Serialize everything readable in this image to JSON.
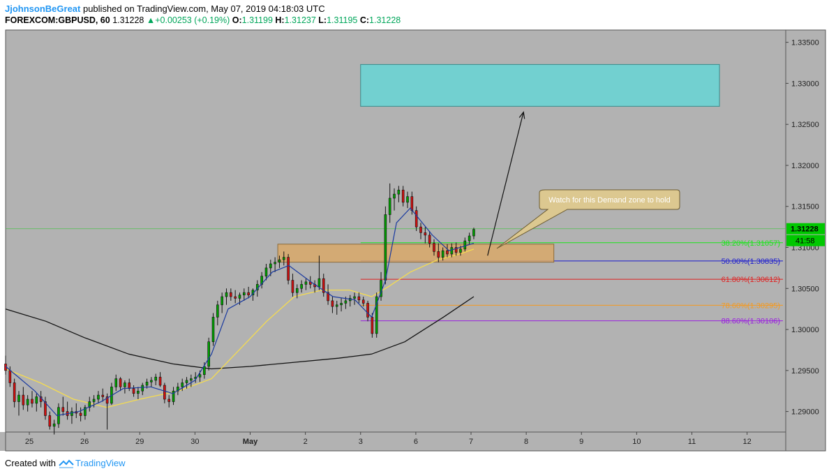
{
  "header": {
    "author": "JjohnsonBeGreat",
    "published_text": " published on TradingView.com, May 07, 2019 04:18:03 UTC",
    "symbol": "FOREXCOM:GBPUSD, 60",
    "last": "1.31228",
    "change": "+0.00253 (+0.19%)",
    "o_label": "O:",
    "o": "1.31199",
    "h_label": "H:",
    "h": "1.31237",
    "l_label": "L:",
    "l": "1.31195",
    "c_label": "C:",
    "c": "1.31228"
  },
  "footer": {
    "created_with": "Created with",
    "brand": "TradingView"
  },
  "colors": {
    "plot_bg": "#b2b2b2",
    "candle_up": "#00a000",
    "candle_down": "#d01010",
    "ema_fast": "#1a3aa0",
    "ema_mid": "#f5dc50",
    "ema_slow": "#111111",
    "target_zone": "#72d0d0",
    "demand_zone": "#d8a868",
    "callout_bg": "#dcc890"
  },
  "chart_data": {
    "type": "candlestick",
    "symbol": "GBPUSD",
    "timeframe": "60",
    "ylim": [
      1.2875,
      1.3365
    ],
    "y_ticks": [
      "1.33500",
      "1.33000",
      "1.32500",
      "1.32000",
      "1.31500",
      "1.31000",
      "1.30500",
      "1.30000",
      "1.29500",
      "1.29000"
    ],
    "x_ticks": [
      "25",
      "26",
      "29",
      "30",
      "May",
      "2",
      "3",
      "6",
      "7",
      "8",
      "9",
      "10",
      "11",
      "12"
    ],
    "x_tick_days": [
      0,
      1,
      2,
      3,
      4,
      5,
      6,
      7,
      8,
      9,
      10,
      11,
      12,
      13
    ],
    "x_range_days": [
      -0.43,
      13.7
    ],
    "price_label": "1.31228",
    "countdown_label": "41:58",
    "fib_levels": [
      {
        "label": "38.20%(1.31057)",
        "price": 1.31057,
        "color": "#19e619"
      },
      {
        "label": "50.00%(1.30835)",
        "price": 1.30835,
        "color": "#1a1ad0"
      },
      {
        "label": "61.80%(1.30612)",
        "price": 1.30612,
        "color": "#e02020"
      },
      {
        "label": "78.60%(1.30295)",
        "price": 1.30295,
        "color": "#f59a20"
      },
      {
        "label": "88.60%(1.30106)",
        "price": 1.30106,
        "color": "#9a20e0"
      }
    ],
    "annotation": "Watch for this Demand zone to hold",
    "zones": [
      {
        "name": "target",
        "x": [
          6.0,
          12.5
        ],
        "y": [
          1.3272,
          1.3323
        ]
      },
      {
        "name": "demand",
        "x": [
          4.5,
          9.5
        ],
        "y": [
          1.3082,
          1.3104
        ]
      }
    ],
    "projection_arrow": {
      "from": [
        8.3,
        1.309
      ],
      "to": [
        8.95,
        1.3265
      ]
    },
    "candles": [
      [
        -0.43,
        1.2958,
        1.2968,
        1.2945,
        1.295
      ],
      [
        -0.35,
        1.295,
        1.2955,
        1.293,
        1.2935
      ],
      [
        -0.27,
        1.2935,
        1.294,
        1.2905,
        1.2912
      ],
      [
        -0.19,
        1.2912,
        1.2925,
        1.2895,
        1.292
      ],
      [
        -0.11,
        1.292,
        1.293,
        1.2902,
        1.2908
      ],
      [
        -0.03,
        1.2908,
        1.292,
        1.29,
        1.2915
      ],
      [
        0.05,
        1.2915,
        1.2925,
        1.2905,
        1.291
      ],
      [
        0.13,
        1.291,
        1.2922,
        1.29,
        1.2918
      ],
      [
        0.21,
        1.2918,
        1.2925,
        1.2905,
        1.2912
      ],
      [
        0.29,
        1.2912,
        1.2918,
        1.289,
        1.2895
      ],
      [
        0.37,
        1.2895,
        1.29,
        1.2878,
        1.2882
      ],
      [
        0.45,
        1.2882,
        1.289,
        1.2872,
        1.2885
      ],
      [
        0.53,
        1.2885,
        1.291,
        1.288,
        1.2905
      ],
      [
        0.61,
        1.2905,
        1.2918,
        1.2895,
        1.29
      ],
      [
        0.69,
        1.29,
        1.2912,
        1.289,
        1.2895
      ],
      [
        0.77,
        1.2895,
        1.2905,
        1.2885,
        1.29
      ],
      [
        0.85,
        1.29,
        1.291,
        1.2892,
        1.2898
      ],
      [
        0.93,
        1.2898,
        1.2905,
        1.2888,
        1.2895
      ],
      [
        1.01,
        1.2895,
        1.2908,
        1.289,
        1.2905
      ],
      [
        1.09,
        1.2905,
        1.2918,
        1.29,
        1.2912
      ],
      [
        1.17,
        1.2912,
        1.292,
        1.2905,
        1.2915
      ],
      [
        1.25,
        1.2915,
        1.2925,
        1.291,
        1.292
      ],
      [
        1.33,
        1.292,
        1.2928,
        1.2912,
        1.2918
      ],
      [
        1.41,
        1.2918,
        1.2922,
        1.2878,
        1.291
      ],
      [
        1.49,
        1.291,
        1.2935,
        1.2908,
        1.293
      ],
      [
        1.57,
        1.293,
        1.2945,
        1.2925,
        1.294
      ],
      [
        1.65,
        1.294,
        1.2942,
        1.2925,
        1.293
      ],
      [
        1.73,
        1.293,
        1.2938,
        1.2922,
        1.2935
      ],
      [
        1.81,
        1.2935,
        1.294,
        1.2925,
        1.2928
      ],
      [
        1.89,
        1.2928,
        1.2932,
        1.2918,
        1.2922
      ],
      [
        1.97,
        1.2922,
        1.293,
        1.2915,
        1.2925
      ],
      [
        2.05,
        1.2925,
        1.2935,
        1.292,
        1.2932
      ],
      [
        2.13,
        1.2932,
        1.294,
        1.2928,
        1.2936
      ],
      [
        2.21,
        1.2936,
        1.2942,
        1.293,
        1.2938
      ],
      [
        2.29,
        1.2938,
        1.2946,
        1.2932,
        1.2942
      ],
      [
        2.37,
        1.2942,
        1.2948,
        1.293,
        1.2932
      ],
      [
        2.45,
        1.2932,
        1.2935,
        1.291,
        1.2915
      ],
      [
        2.53,
        1.2915,
        1.292,
        1.2905,
        1.2912
      ],
      [
        2.61,
        1.2912,
        1.293,
        1.2908,
        1.2925
      ],
      [
        2.69,
        1.2925,
        1.2935,
        1.292,
        1.293
      ],
      [
        2.77,
        1.293,
        1.294,
        1.2925,
        1.2935
      ],
      [
        2.85,
        1.2935,
        1.2942,
        1.2928,
        1.2938
      ],
      [
        2.93,
        1.2938,
        1.2945,
        1.293,
        1.294
      ],
      [
        3.01,
        1.294,
        1.2948,
        1.2935,
        1.2942
      ],
      [
        3.09,
        1.2942,
        1.295,
        1.2936,
        1.2945
      ],
      [
        3.17,
        1.2945,
        1.296,
        1.294,
        1.2955
      ],
      [
        3.25,
        1.2955,
        1.299,
        1.295,
        1.2985
      ],
      [
        3.33,
        1.2985,
        1.302,
        1.298,
        1.3015
      ],
      [
        3.41,
        1.3015,
        1.3035,
        1.3005,
        1.303
      ],
      [
        3.49,
        1.303,
        1.3045,
        1.302,
        1.304
      ],
      [
        3.57,
        1.304,
        1.305,
        1.303,
        1.3045
      ],
      [
        3.65,
        1.3045,
        1.305,
        1.3035,
        1.304
      ],
      [
        3.73,
        1.304,
        1.3048,
        1.3032,
        1.3038
      ],
      [
        3.81,
        1.3038,
        1.3045,
        1.303,
        1.3042
      ],
      [
        3.89,
        1.3042,
        1.305,
        1.3035,
        1.3045
      ],
      [
        3.97,
        1.3045,
        1.3052,
        1.3038,
        1.3042
      ],
      [
        4.05,
        1.3042,
        1.305,
        1.3035,
        1.3048
      ],
      [
        4.13,
        1.3048,
        1.306,
        1.304,
        1.3055
      ],
      [
        4.21,
        1.3055,
        1.307,
        1.305,
        1.3065
      ],
      [
        4.29,
        1.3065,
        1.308,
        1.306,
        1.3075
      ],
      [
        4.37,
        1.3075,
        1.3085,
        1.3065,
        1.308
      ],
      [
        4.45,
        1.308,
        1.3088,
        1.307,
        1.3082
      ],
      [
        4.53,
        1.3082,
        1.309,
        1.3075,
        1.3085
      ],
      [
        4.61,
        1.3085,
        1.3095,
        1.3078,
        1.3088
      ],
      [
        4.69,
        1.3088,
        1.3092,
        1.3055,
        1.306
      ],
      [
        4.77,
        1.306,
        1.3068,
        1.304,
        1.3045
      ],
      [
        4.85,
        1.3045,
        1.3055,
        1.3038,
        1.305
      ],
      [
        4.93,
        1.305,
        1.306,
        1.3045,
        1.3055
      ],
      [
        5.01,
        1.3055,
        1.3062,
        1.3048,
        1.3058
      ],
      [
        5.09,
        1.3058,
        1.3065,
        1.305,
        1.3055
      ],
      [
        5.17,
        1.3055,
        1.306,
        1.3045,
        1.3052
      ],
      [
        5.25,
        1.3052,
        1.309,
        1.3048,
        1.3062
      ],
      [
        5.33,
        1.3062,
        1.3068,
        1.304,
        1.3045
      ],
      [
        5.41,
        1.3045,
        1.3055,
        1.303,
        1.3035
      ],
      [
        5.49,
        1.3035,
        1.304,
        1.302,
        1.3028
      ],
      [
        5.57,
        1.3028,
        1.3035,
        1.3018,
        1.303
      ],
      [
        5.65,
        1.303,
        1.3038,
        1.3022,
        1.3032
      ],
      [
        5.73,
        1.3032,
        1.304,
        1.3025,
        1.3035
      ],
      [
        5.81,
        1.3035,
        1.3042,
        1.3028,
        1.3038
      ],
      [
        5.89,
        1.3038,
        1.3045,
        1.303,
        1.304
      ],
      [
        5.97,
        1.304,
        1.3045,
        1.3032,
        1.3036
      ],
      [
        6.05,
        1.3036,
        1.304,
        1.3028,
        1.3032
      ],
      [
        6.13,
        1.3032,
        1.3035,
        1.301,
        1.3015
      ],
      [
        6.21,
        1.3015,
        1.302,
        1.299,
        1.2995
      ],
      [
        6.29,
        1.2995,
        1.3045,
        1.299,
        1.304
      ],
      [
        6.37,
        1.304,
        1.307,
        1.3035,
        1.306
      ],
      [
        6.45,
        1.306,
        1.315,
        1.3055,
        1.314
      ],
      [
        6.53,
        1.314,
        1.3178,
        1.313,
        1.316
      ],
      [
        6.61,
        1.316,
        1.3172,
        1.3145,
        1.3165
      ],
      [
        6.69,
        1.3165,
        1.3175,
        1.3155,
        1.317
      ],
      [
        6.77,
        1.317,
        1.3175,
        1.315,
        1.3155
      ],
      [
        6.85,
        1.3155,
        1.3168,
        1.3148,
        1.3162
      ],
      [
        6.93,
        1.3162,
        1.3168,
        1.314,
        1.3145
      ],
      [
        7.01,
        1.3145,
        1.315,
        1.312,
        1.3125
      ],
      [
        7.09,
        1.3125,
        1.313,
        1.311,
        1.3118
      ],
      [
        7.17,
        1.3118,
        1.3125,
        1.3105,
        1.3115
      ],
      [
        7.25,
        1.3115,
        1.312,
        1.31,
        1.3105
      ],
      [
        7.33,
        1.3105,
        1.311,
        1.309,
        1.3095
      ],
      [
        7.41,
        1.3095,
        1.3105,
        1.3082,
        1.3088
      ],
      [
        7.49,
        1.3088,
        1.31,
        1.3084,
        1.3096
      ],
      [
        7.57,
        1.3096,
        1.3104,
        1.3088,
        1.3092
      ],
      [
        7.65,
        1.3092,
        1.3105,
        1.3088,
        1.31
      ],
      [
        7.73,
        1.31,
        1.3106,
        1.309,
        1.3094
      ],
      [
        7.81,
        1.3094,
        1.3102,
        1.309,
        1.3098
      ],
      [
        7.89,
        1.3098,
        1.3112,
        1.3095,
        1.3108
      ],
      [
        7.97,
        1.3108,
        1.3118,
        1.3104,
        1.3114
      ],
      [
        8.05,
        1.3114,
        1.3124,
        1.311,
        1.3122
      ]
    ],
    "ema_fast": [
      [
        -0.43,
        1.2955
      ],
      [
        0.1,
        1.2925
      ],
      [
        0.5,
        1.2895
      ],
      [
        0.9,
        1.29
      ],
      [
        1.3,
        1.2912
      ],
      [
        1.7,
        1.2928
      ],
      [
        2.2,
        1.293
      ],
      [
        2.6,
        1.2922
      ],
      [
        3.0,
        1.2938
      ],
      [
        3.3,
        1.297
      ],
      [
        3.6,
        1.3025
      ],
      [
        4.0,
        1.304
      ],
      [
        4.4,
        1.307
      ],
      [
        4.7,
        1.3078
      ],
      [
        5.1,
        1.3058
      ],
      [
        5.5,
        1.304
      ],
      [
        5.9,
        1.3036
      ],
      [
        6.2,
        1.3015
      ],
      [
        6.45,
        1.306
      ],
      [
        6.65,
        1.313
      ],
      [
        6.9,
        1.3148
      ],
      [
        7.3,
        1.3115
      ],
      [
        7.6,
        1.3096
      ],
      [
        8.05,
        1.3105
      ]
    ],
    "ema_mid": [
      [
        -0.43,
        1.2952
      ],
      [
        0.2,
        1.2935
      ],
      [
        0.8,
        1.2915
      ],
      [
        1.4,
        1.2905
      ],
      [
        2.0,
        1.2915
      ],
      [
        2.7,
        1.2925
      ],
      [
        3.3,
        1.294
      ],
      [
        3.8,
        1.2975
      ],
      [
        4.3,
        1.301
      ],
      [
        4.8,
        1.304
      ],
      [
        5.3,
        1.3048
      ],
      [
        5.8,
        1.3048
      ],
      [
        6.2,
        1.304
      ],
      [
        6.5,
        1.3052
      ],
      [
        6.9,
        1.307
      ],
      [
        7.4,
        1.3085
      ],
      [
        7.8,
        1.3092
      ],
      [
        8.05,
        1.3098
      ]
    ],
    "ema_slow": [
      [
        -0.43,
        1.3025
      ],
      [
        0.3,
        1.301
      ],
      [
        1.0,
        1.299
      ],
      [
        1.8,
        1.297
      ],
      [
        2.6,
        1.2958
      ],
      [
        3.3,
        1.2952
      ],
      [
        4.0,
        1.2955
      ],
      [
        4.8,
        1.296
      ],
      [
        5.6,
        1.2965
      ],
      [
        6.2,
        1.297
      ],
      [
        6.8,
        1.2985
      ],
      [
        7.5,
        1.3015
      ],
      [
        8.05,
        1.304
      ]
    ]
  }
}
